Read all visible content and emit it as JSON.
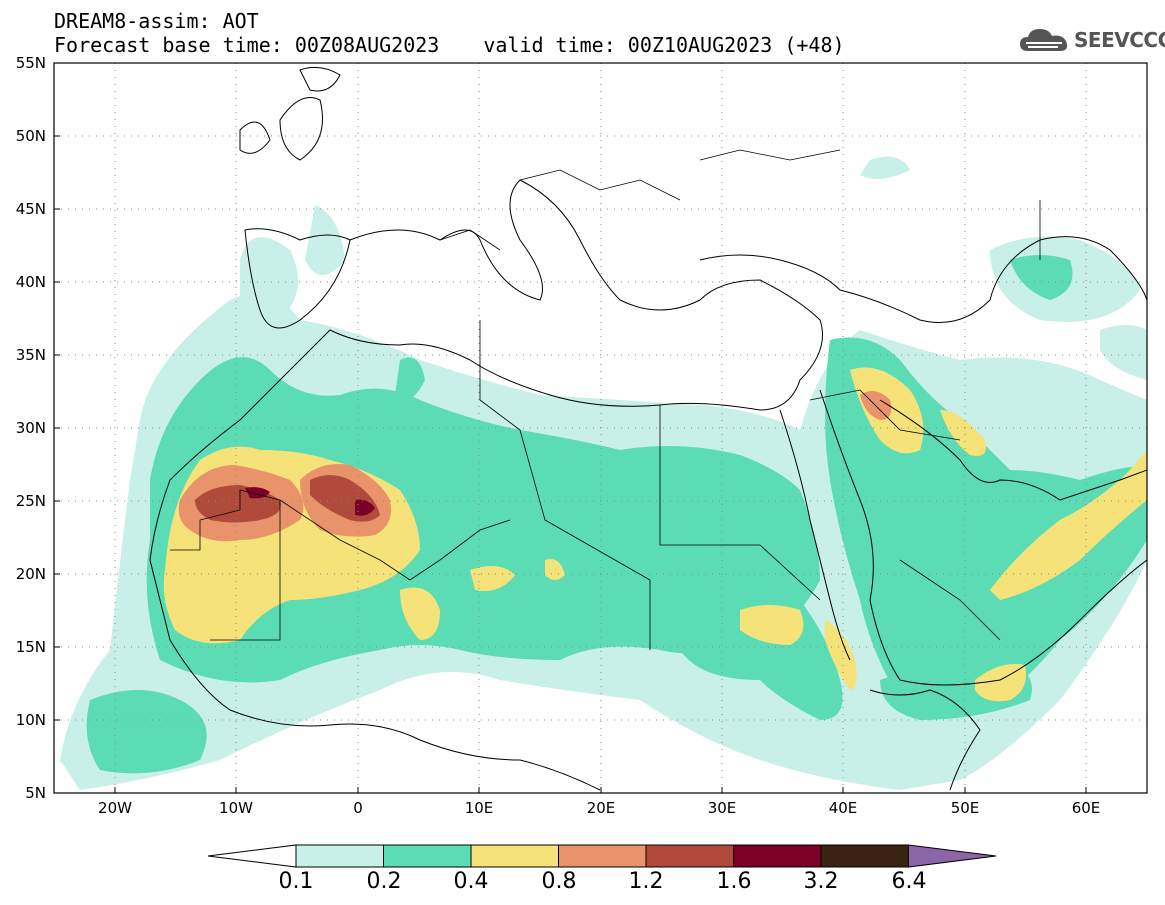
{
  "header": {
    "line1": "DREAM8-assim: AOT",
    "base_time": "Forecast base time: 00Z08AUG2023",
    "valid_time": "valid time: 00Z10AUG2023 (+48)"
  },
  "logo": {
    "text": "SEEVCCC",
    "icon": "cloud-icon"
  },
  "map": {
    "lat_labels": [
      "55N",
      "50N",
      "45N",
      "40N",
      "35N",
      "30N",
      "25N",
      "20N",
      "15N",
      "10N",
      "5N"
    ],
    "lon_labels": [
      "20W",
      "10W",
      "0",
      "10E",
      "20E",
      "30E",
      "40E",
      "50E",
      "60E"
    ],
    "lon_range": [
      -25,
      65
    ],
    "lat_range": [
      5,
      55
    ],
    "grid": "dotted"
  },
  "colorbar": {
    "levels": [
      "0.1",
      "0.2",
      "0.4",
      "0.8",
      "1.2",
      "1.6",
      "3.2",
      "6.4"
    ],
    "colors": [
      "#ffffff",
      "#c8efe8",
      "#5cdcb4",
      "#f5e37a",
      "#e8936a",
      "#b04b3b",
      "#7a0026",
      "#3b2314",
      "#8c64a8"
    ]
  }
}
